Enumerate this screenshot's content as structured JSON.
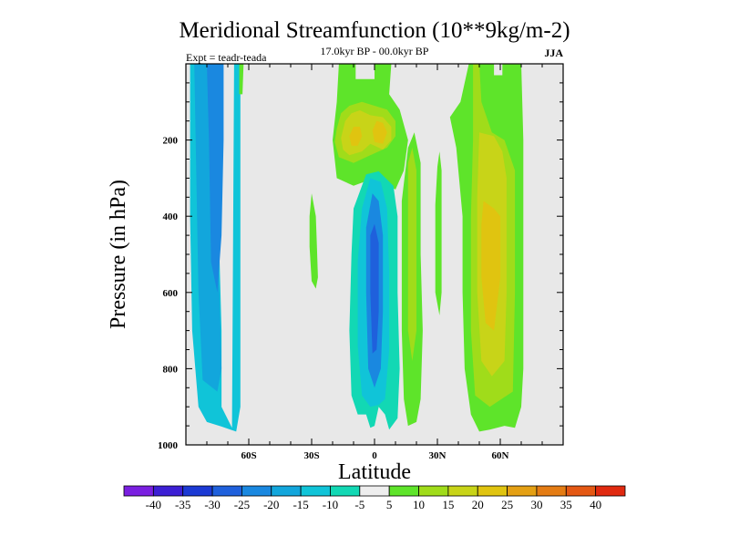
{
  "chart_data": {
    "type": "heatmap",
    "title": "Meridional Streamfunction (10**9kg/m-2)",
    "subtitle": "17.0kyr BP - 00.0kyr BP",
    "experiment": "Expt = teadr-teada",
    "season": "JJA",
    "xlabel": "Latitude",
    "ylabel": "Pressure (in hPa)",
    "xlim": [
      -90,
      90
    ],
    "ylim": [
      0,
      1000
    ],
    "x_ticks": [
      {
        "value": -60,
        "label": "60S"
      },
      {
        "value": -30,
        "label": "30S"
      },
      {
        "value": 0,
        "label": "0"
      },
      {
        "value": 30,
        "label": "30N"
      },
      {
        "value": 60,
        "label": "60N"
      }
    ],
    "y_ticks": [
      {
        "value": 200,
        "label": "200"
      },
      {
        "value": 400,
        "label": "400"
      },
      {
        "value": 600,
        "label": "600"
      },
      {
        "value": 800,
        "label": "800"
      },
      {
        "value": 1000,
        "label": "1000"
      }
    ],
    "levels": [
      -40,
      -35,
      -30,
      -25,
      -20,
      -15,
      -10,
      -5,
      5,
      10,
      15,
      20,
      25,
      30,
      35,
      40
    ],
    "level_labels": [
      "-40",
      "-35",
      "-30",
      "-25",
      "-20",
      "-15",
      "-10",
      "-5",
      "5",
      "10",
      "15",
      "20",
      "25",
      "30",
      "35",
      "40"
    ],
    "colors": [
      "#7a1fe0",
      "#3c1fd4",
      "#1c3ad4",
      "#1f60dc",
      "#1a88e0",
      "#12a6dc",
      "#10c4d8",
      "#12d8b4",
      "#eeeeee",
      "#5ee42a",
      "#a0dc1a",
      "#c8d418",
      "#e0c410",
      "#e4a014",
      "#e47c14",
      "#e45814",
      "#e02a10"
    ],
    "background_color": "#e8e8e8",
    "regions": [
      {
        "name": "south-polar-cell-outer",
        "value": -12,
        "points": [
          [
            -88,
            0
          ],
          [
            -77,
            0
          ],
          [
            -76,
            100
          ],
          [
            -75,
            300
          ],
          [
            -74,
            500
          ],
          [
            -73,
            700
          ],
          [
            -73,
            900
          ],
          [
            -68,
            955
          ],
          [
            -67,
            0
          ],
          [
            -64,
            0
          ],
          [
            -64,
            300
          ],
          [
            -64,
            600
          ],
          [
            -64,
            900
          ],
          [
            -66,
            965
          ],
          [
            -73,
            952
          ],
          [
            -80,
            940
          ],
          [
            -84,
            900
          ],
          [
            -87,
            700
          ],
          [
            -88,
            400
          ]
        ]
      },
      {
        "name": "south-polar-cell-mid",
        "value": -18,
        "points": [
          [
            -86,
            0
          ],
          [
            -77,
            0
          ],
          [
            -76,
            300
          ],
          [
            -74,
            600
          ],
          [
            -73,
            800
          ],
          [
            -75,
            860
          ],
          [
            -82,
            830
          ],
          [
            -84,
            600
          ],
          [
            -85,
            300
          ]
        ]
      },
      {
        "name": "south-polar-cell-core",
        "value": -22,
        "points": [
          [
            -80,
            0
          ],
          [
            -72,
            0
          ],
          [
            -72,
            200
          ],
          [
            -73,
            450
          ],
          [
            -75,
            600
          ],
          [
            -78,
            520
          ],
          [
            -79,
            200
          ]
        ]
      },
      {
        "name": "south-pole-small-green",
        "value": 6,
        "points": [
          [
            -64.5,
            0
          ],
          [
            -62.5,
            0
          ],
          [
            -63,
            80
          ],
          [
            -64.5,
            80
          ]
        ]
      },
      {
        "name": "sh-small-positive",
        "value": 6,
        "points": [
          [
            -30,
            340
          ],
          [
            -28,
            400
          ],
          [
            -27.5,
            480
          ],
          [
            -27,
            560
          ],
          [
            -28,
            590
          ],
          [
            -30,
            570
          ],
          [
            -31,
            480
          ],
          [
            -31,
            400
          ]
        ]
      },
      {
        "name": "equatorial-positive-outer",
        "value": 7,
        "points": [
          [
            -17,
            0
          ],
          [
            -9,
            0
          ],
          [
            -9,
            40
          ],
          [
            0,
            40
          ],
          [
            0,
            0
          ],
          [
            8,
            0
          ],
          [
            7,
            80
          ],
          [
            12,
            120
          ],
          [
            16,
            200
          ],
          [
            14,
            280
          ],
          [
            10,
            330
          ],
          [
            0,
            300
          ],
          [
            -10,
            320
          ],
          [
            -18,
            300
          ],
          [
            -20,
            200
          ],
          [
            -18,
            100
          ]
        ]
      },
      {
        "name": "equatorial-positive-mid",
        "value": 12,
        "points": [
          [
            -18,
            170
          ],
          [
            -16,
            130
          ],
          [
            -12,
            110
          ],
          [
            -6,
            100
          ],
          [
            0,
            110
          ],
          [
            6,
            120
          ],
          [
            10,
            150
          ],
          [
            10,
            190
          ],
          [
            6,
            220
          ],
          [
            -2,
            240
          ],
          [
            -10,
            260
          ],
          [
            -17,
            245
          ],
          [
            -19,
            205
          ]
        ]
      },
      {
        "name": "equatorial-positive-inner",
        "value": 16,
        "points": [
          [
            -16,
            195
          ],
          [
            -14,
            150
          ],
          [
            -11,
            130
          ],
          [
            -7,
            122
          ],
          [
            -2,
            135
          ],
          [
            4,
            140
          ],
          [
            8,
            165
          ],
          [
            8,
            200
          ],
          [
            4,
            225
          ],
          [
            -2,
            210
          ],
          [
            -6,
            230
          ],
          [
            -12,
            240
          ],
          [
            -15,
            225
          ]
        ]
      },
      {
        "name": "equatorial-positive-core",
        "value": 22,
        "points": [
          [
            -12,
            190
          ],
          [
            -10,
            165
          ],
          [
            -7,
            165
          ],
          [
            -6,
            190
          ],
          [
            -8,
            215
          ],
          [
            -11,
            215
          ]
        ]
      },
      {
        "name": "equatorial-positive-core-2",
        "value": 22,
        "points": [
          [
            -1,
            175
          ],
          [
            1,
            150
          ],
          [
            4,
            155
          ],
          [
            6,
            180
          ],
          [
            4,
            210
          ],
          [
            0,
            205
          ]
        ]
      },
      {
        "name": "equatorial-negative-outer",
        "value": -10,
        "points": [
          [
            -4,
            290
          ],
          [
            2,
            282
          ],
          [
            9,
            320
          ],
          [
            11,
            400
          ],
          [
            11,
            600
          ],
          [
            12,
            800
          ],
          [
            11,
            930
          ],
          [
            7,
            960
          ],
          [
            5,
            920
          ],
          [
            2,
            900
          ],
          [
            0,
            950
          ],
          [
            -2,
            955
          ],
          [
            -4,
            920
          ],
          [
            -8,
            920
          ],
          [
            -11,
            870
          ],
          [
            -12,
            700
          ],
          [
            -11,
            500
          ],
          [
            -10,
            380
          ]
        ]
      },
      {
        "name": "equatorial-negative-mid",
        "value": -15,
        "points": [
          [
            -2,
            300
          ],
          [
            3,
            310
          ],
          [
            6,
            380
          ],
          [
            7,
            550
          ],
          [
            7,
            750
          ],
          [
            5,
            880
          ],
          [
            2,
            895
          ],
          [
            -2,
            900
          ],
          [
            -6,
            870
          ],
          [
            -8,
            740
          ],
          [
            -8,
            520
          ],
          [
            -6,
            380
          ]
        ]
      },
      {
        "name": "equatorial-negative-inner",
        "value": -22,
        "points": [
          [
            -1,
            340
          ],
          [
            2,
            360
          ],
          [
            4,
            450
          ],
          [
            4,
            650
          ],
          [
            3,
            800
          ],
          [
            0,
            850
          ],
          [
            -3,
            800
          ],
          [
            -4,
            600
          ],
          [
            -4,
            430
          ]
        ]
      },
      {
        "name": "equatorial-negative-core",
        "value": -30,
        "points": [
          [
            0,
            420
          ],
          [
            2,
            470
          ],
          [
            2,
            650
          ],
          [
            1,
            750
          ],
          [
            -1,
            760
          ],
          [
            -2,
            600
          ],
          [
            -2,
            450
          ]
        ]
      },
      {
        "name": "nh-positive-15n-outer",
        "value": 7,
        "points": [
          [
            13,
            360
          ],
          [
            16,
            220
          ],
          [
            19,
            180
          ],
          [
            22,
            260
          ],
          [
            22,
            500
          ],
          [
            23,
            700
          ],
          [
            22,
            880
          ],
          [
            20,
            940
          ],
          [
            16,
            950
          ],
          [
            14,
            880
          ],
          [
            13,
            700
          ],
          [
            13,
            500
          ]
        ]
      },
      {
        "name": "nh-positive-15n-inner",
        "value": 12,
        "points": [
          [
            16,
            260
          ],
          [
            18,
            220
          ],
          [
            20,
            280
          ],
          [
            20,
            500
          ],
          [
            20,
            700
          ],
          [
            18,
            780
          ],
          [
            16,
            700
          ],
          [
            16,
            500
          ]
        ]
      },
      {
        "name": "nh-positive-30n",
        "value": 6,
        "points": [
          [
            29,
            370
          ],
          [
            30,
            270
          ],
          [
            31,
            230
          ],
          [
            32,
            280
          ],
          [
            32,
            450
          ],
          [
            32,
            600
          ],
          [
            31,
            660
          ],
          [
            29,
            600
          ]
        ]
      },
      {
        "name": "nh-ferrel-outer",
        "value": 8,
        "points": [
          [
            45,
            0
          ],
          [
            57,
            0
          ],
          [
            57,
            30
          ],
          [
            61,
            30
          ],
          [
            61,
            0
          ],
          [
            70,
            0
          ],
          [
            71,
            200
          ],
          [
            71,
            500
          ],
          [
            71,
            800
          ],
          [
            70,
            900
          ],
          [
            67,
            955
          ],
          [
            62,
            950
          ],
          [
            55,
            960
          ],
          [
            50,
            965
          ],
          [
            46,
            920
          ],
          [
            43,
            800
          ],
          [
            42,
            600
          ],
          [
            42,
            400
          ],
          [
            39,
            220
          ],
          [
            36,
            140
          ],
          [
            41,
            100
          ]
        ]
      },
      {
        "name": "nh-ferrel-mid",
        "value": 13,
        "points": [
          [
            47,
            0
          ],
          [
            50,
            0
          ],
          [
            51,
            100
          ],
          [
            56,
            180
          ],
          [
            62,
            200
          ],
          [
            67,
            280
          ],
          [
            67,
            600
          ],
          [
            66,
            860
          ],
          [
            55,
            900
          ],
          [
            48,
            870
          ],
          [
            46,
            700
          ],
          [
            46,
            400
          ],
          [
            47,
            200
          ]
        ]
      },
      {
        "name": "nh-ferrel-inner",
        "value": 18,
        "points": [
          [
            50,
            180
          ],
          [
            57,
            190
          ],
          [
            61,
            230
          ],
          [
            63,
            300
          ],
          [
            63,
            600
          ],
          [
            62,
            780
          ],
          [
            56,
            820
          ],
          [
            51,
            780
          ],
          [
            49,
            600
          ],
          [
            49,
            350
          ]
        ]
      },
      {
        "name": "nh-ferrel-core",
        "value": 22,
        "points": [
          [
            52,
            360
          ],
          [
            57,
            380
          ],
          [
            60,
            400
          ],
          [
            60,
            560
          ],
          [
            57,
            700
          ],
          [
            53,
            680
          ],
          [
            51,
            560
          ],
          [
            51,
            420
          ]
        ]
      }
    ]
  }
}
